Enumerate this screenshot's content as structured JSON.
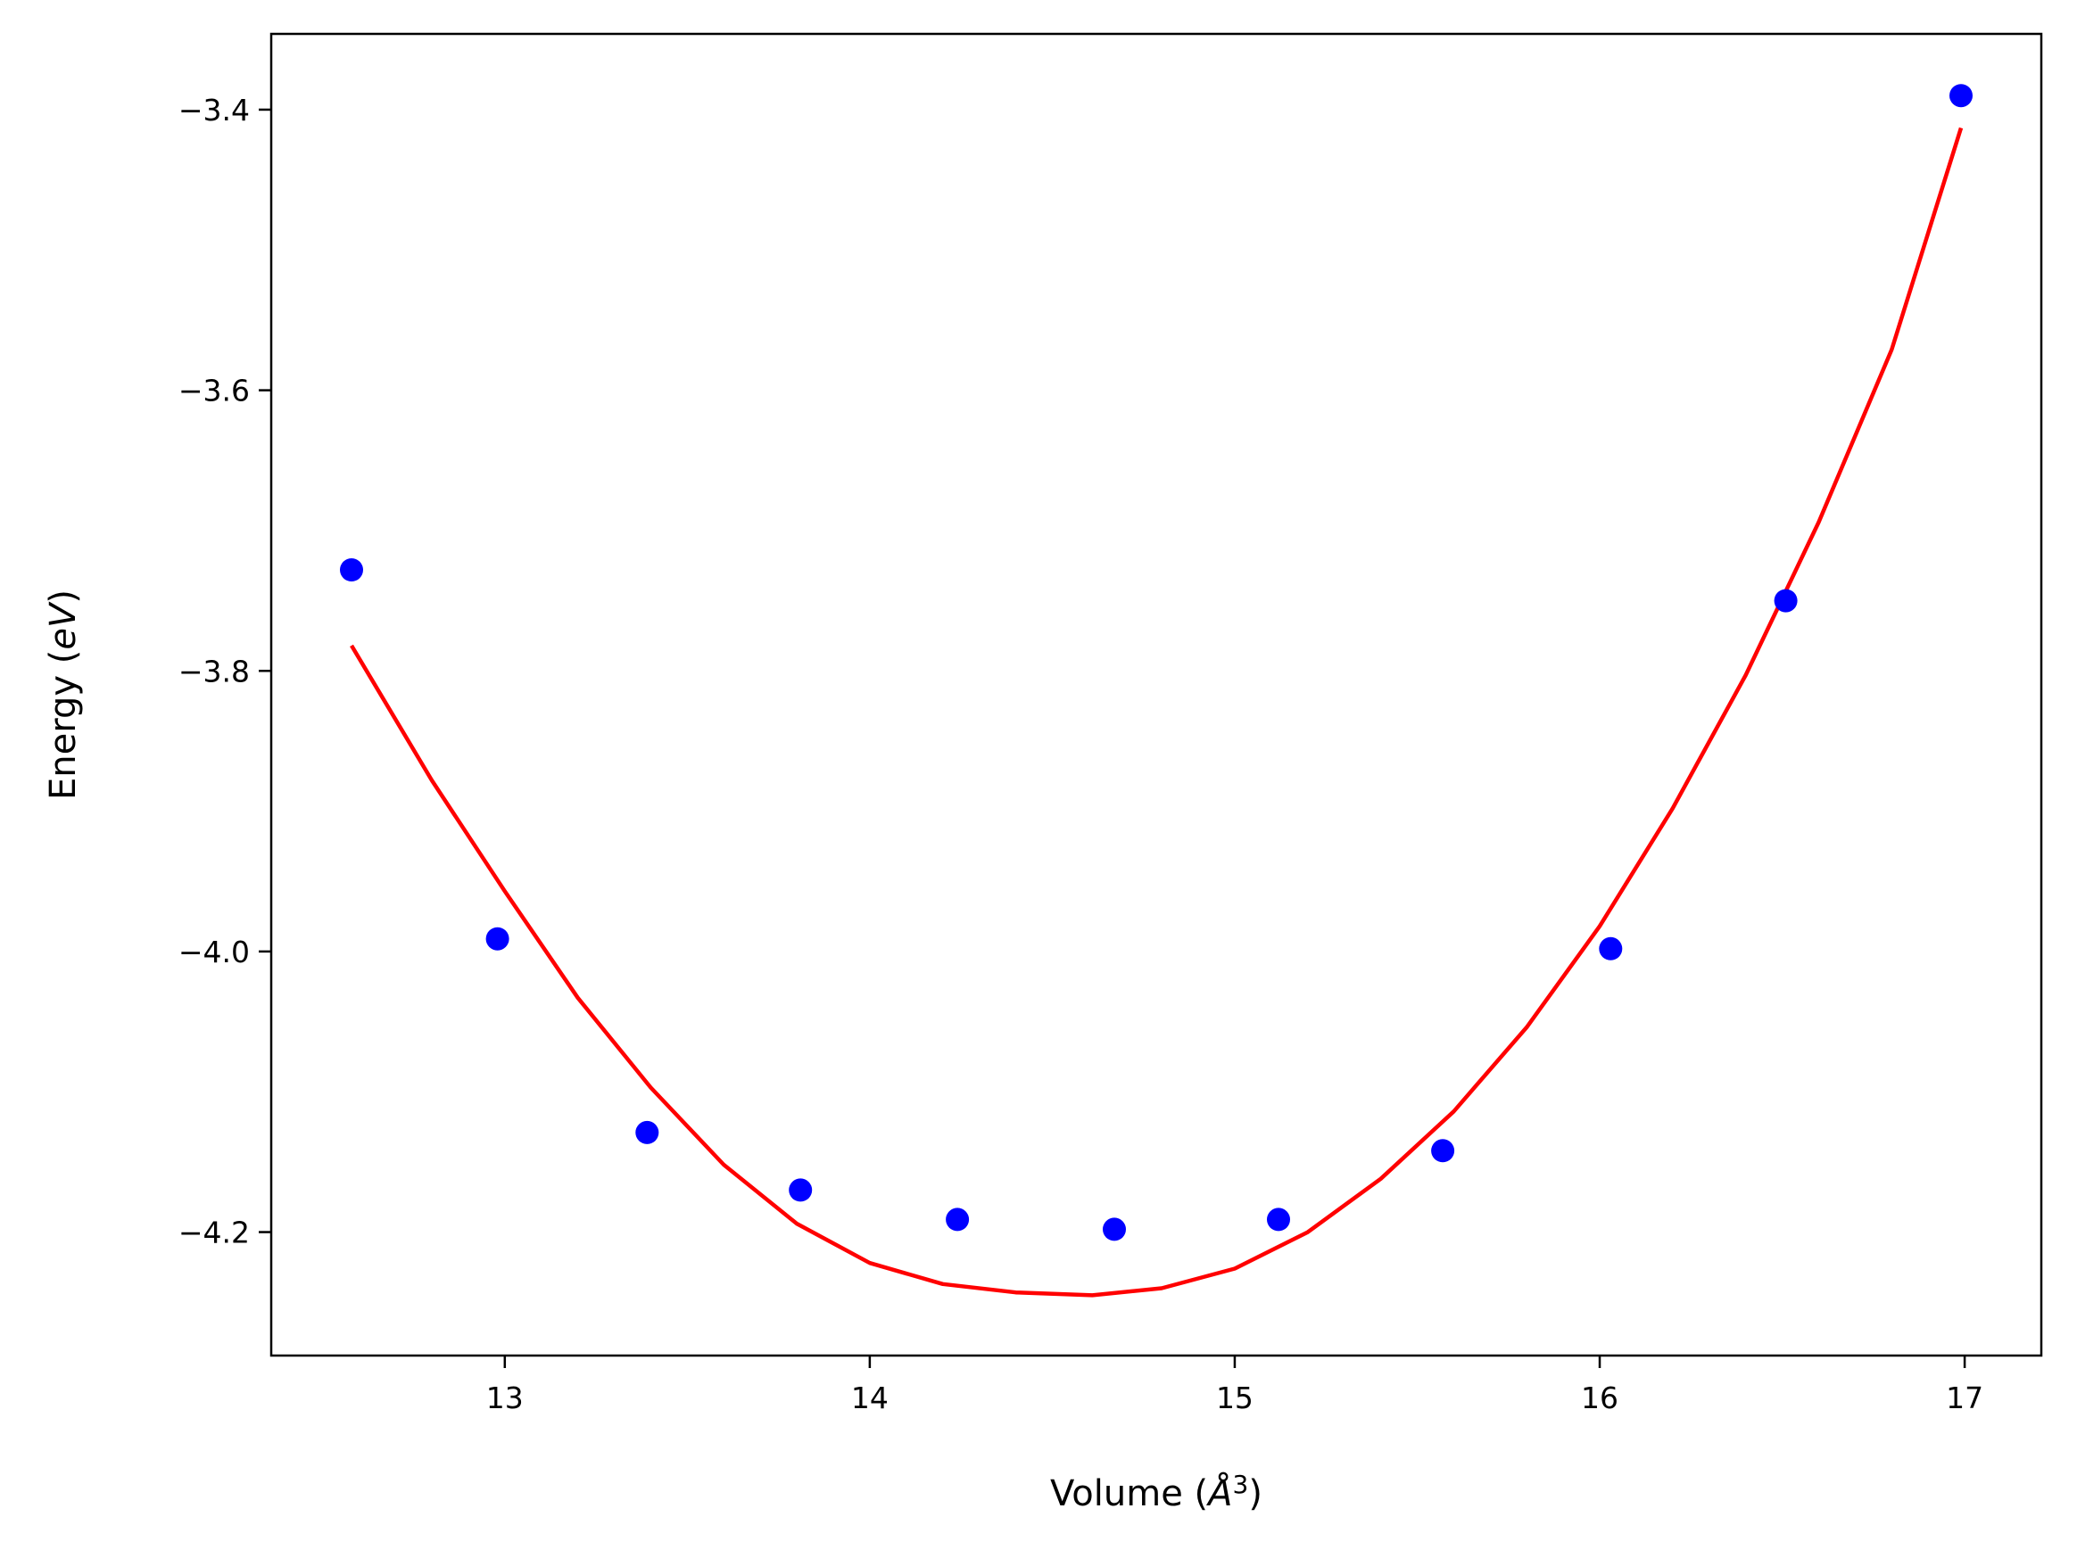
{
  "chart_data": {
    "type": "scatter",
    "title": "",
    "xlabel": "Volume (",
    "xlabel_italic": "Å",
    "xlabel_sup": "3",
    "xlabel_close": ")",
    "ylabel": "Energy (",
    "ylabel_italic": "eV",
    "ylabel_close": ")",
    "xlim": [
      12.36,
      17.21
    ],
    "ylim": [
      -4.288,
      -3.346
    ],
    "grid": false,
    "xticks": [
      13,
      14,
      15,
      16,
      17
    ],
    "xtick_labels": [
      "13",
      "14",
      "15",
      "16",
      "17"
    ],
    "yticks": [
      -4.2,
      -4.0,
      -3.8,
      -3.6,
      -3.4
    ],
    "ytick_labels": [
      "−4.2",
      "−4.0",
      "−3.8",
      "−3.6",
      "−3.4"
    ],
    "series": [
      {
        "kind": "scatter",
        "color": "#0000ff",
        "x": [
          12.58,
          12.98,
          13.39,
          13.81,
          14.24,
          14.67,
          15.12,
          15.57,
          16.03,
          16.51,
          16.99
        ],
        "y": [
          -3.728,
          -3.991,
          -4.129,
          -4.17,
          -4.191,
          -4.198,
          -4.191,
          -4.142,
          -3.998,
          -3.75,
          -3.39
        ]
      },
      {
        "kind": "fit-line",
        "color": "#ff0000",
        "x": [
          12.58,
          12.8,
          13.0,
          13.2,
          13.4,
          13.6,
          13.8,
          14.0,
          14.2,
          14.4,
          14.61,
          14.8,
          15.0,
          15.2,
          15.4,
          15.6,
          15.8,
          16.0,
          16.2,
          16.4,
          16.6,
          16.8,
          16.99
        ],
        "y": [
          -3.782,
          -3.878,
          -3.957,
          -4.033,
          -4.097,
          -4.152,
          -4.194,
          -4.222,
          -4.237,
          -4.243,
          -4.245,
          -4.24,
          -4.226,
          -4.2,
          -4.162,
          -4.114,
          -4.054,
          -3.982,
          -3.898,
          -3.803,
          -3.694,
          -3.571,
          -3.413
        ]
      }
    ]
  }
}
